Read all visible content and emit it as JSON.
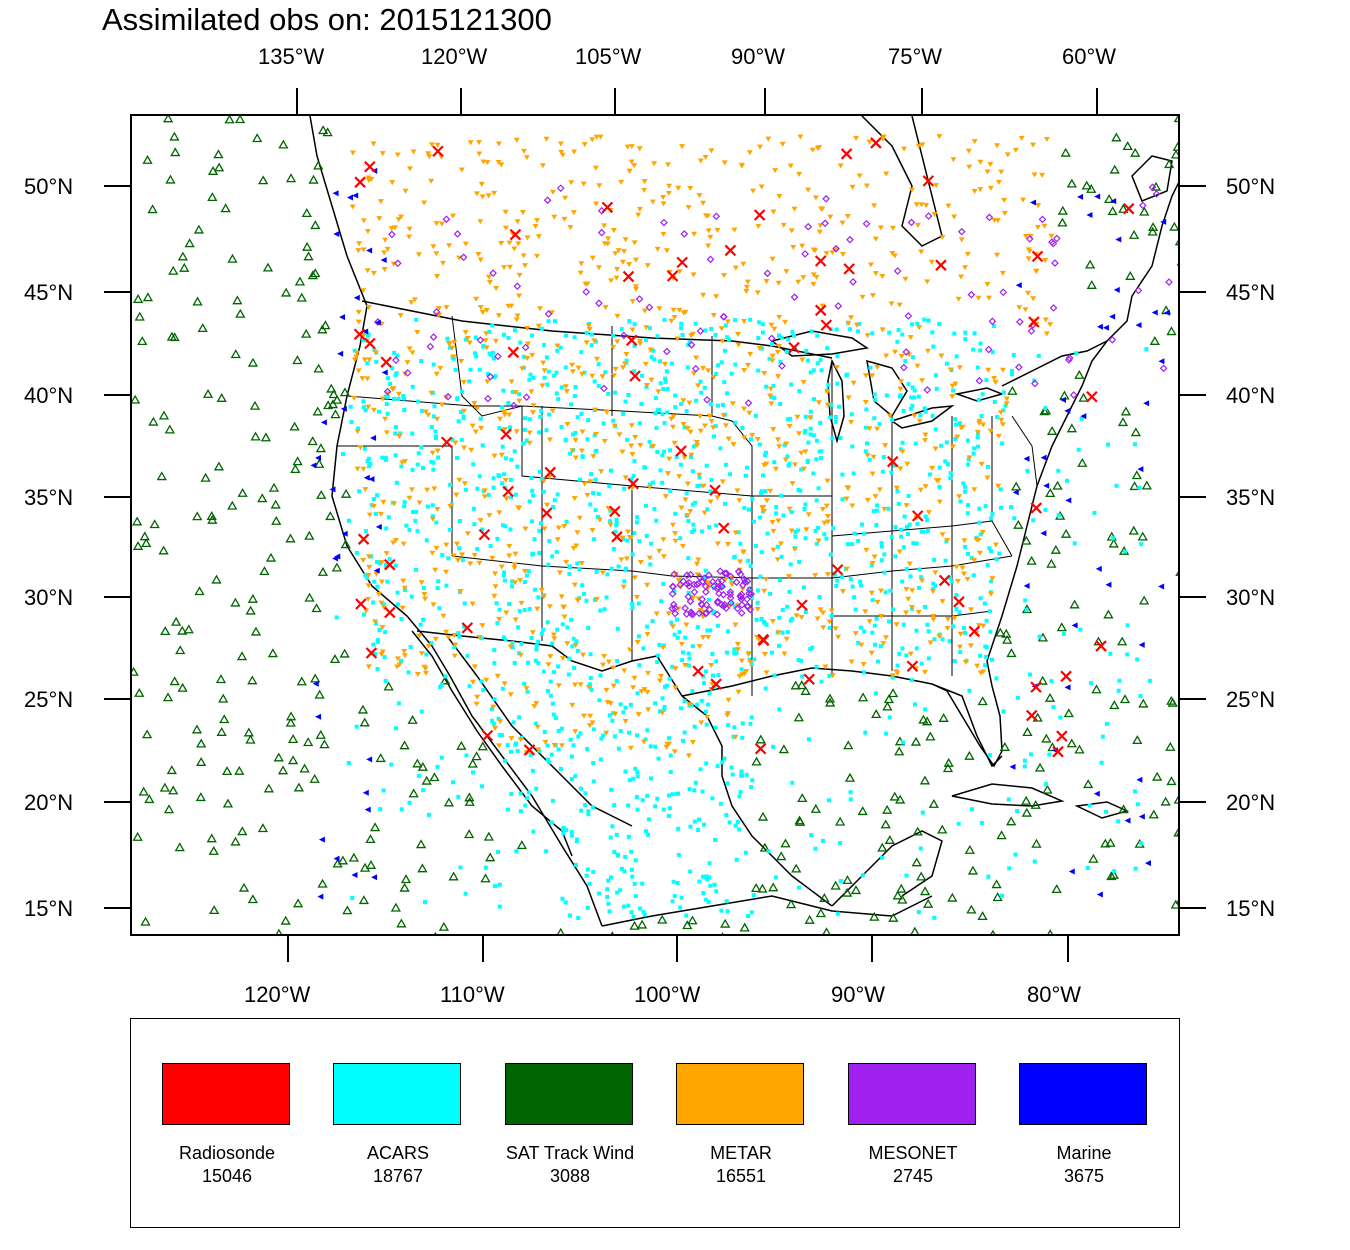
{
  "title": "Assimilated obs on: 2015121300",
  "map": {
    "top_lon_labels": [
      "135°W",
      "120°W",
      "105°W",
      "90°W",
      "75°W",
      "60°W"
    ],
    "bottom_lon_labels": [
      "120°W",
      "110°W",
      "100°W",
      "90°W",
      "80°W"
    ],
    "lat_labels": [
      "50°N",
      "45°N",
      "40°N",
      "35°N",
      "30°N",
      "25°N",
      "20°N",
      "15°N"
    ]
  },
  "legend": [
    {
      "label": "Radiosonde",
      "count": "15046",
      "color": "#ff0000",
      "marker": "x-cross"
    },
    {
      "label": "ACARS",
      "count": "18767",
      "color": "#00ffff",
      "marker": "square-dot"
    },
    {
      "label": "SAT Track Wind",
      "count": "3088",
      "color": "#006400",
      "marker": "open-triangle"
    },
    {
      "label": "METAR",
      "count": "16551",
      "color": "#ffa500",
      "marker": "down-triangle"
    },
    {
      "label": "MESONET",
      "count": "2745",
      "color": "#a020f0",
      "marker": "diamond"
    },
    {
      "label": "Marine",
      "count": "3675",
      "color": "#0000ff",
      "marker": "left-triangle"
    }
  ]
}
